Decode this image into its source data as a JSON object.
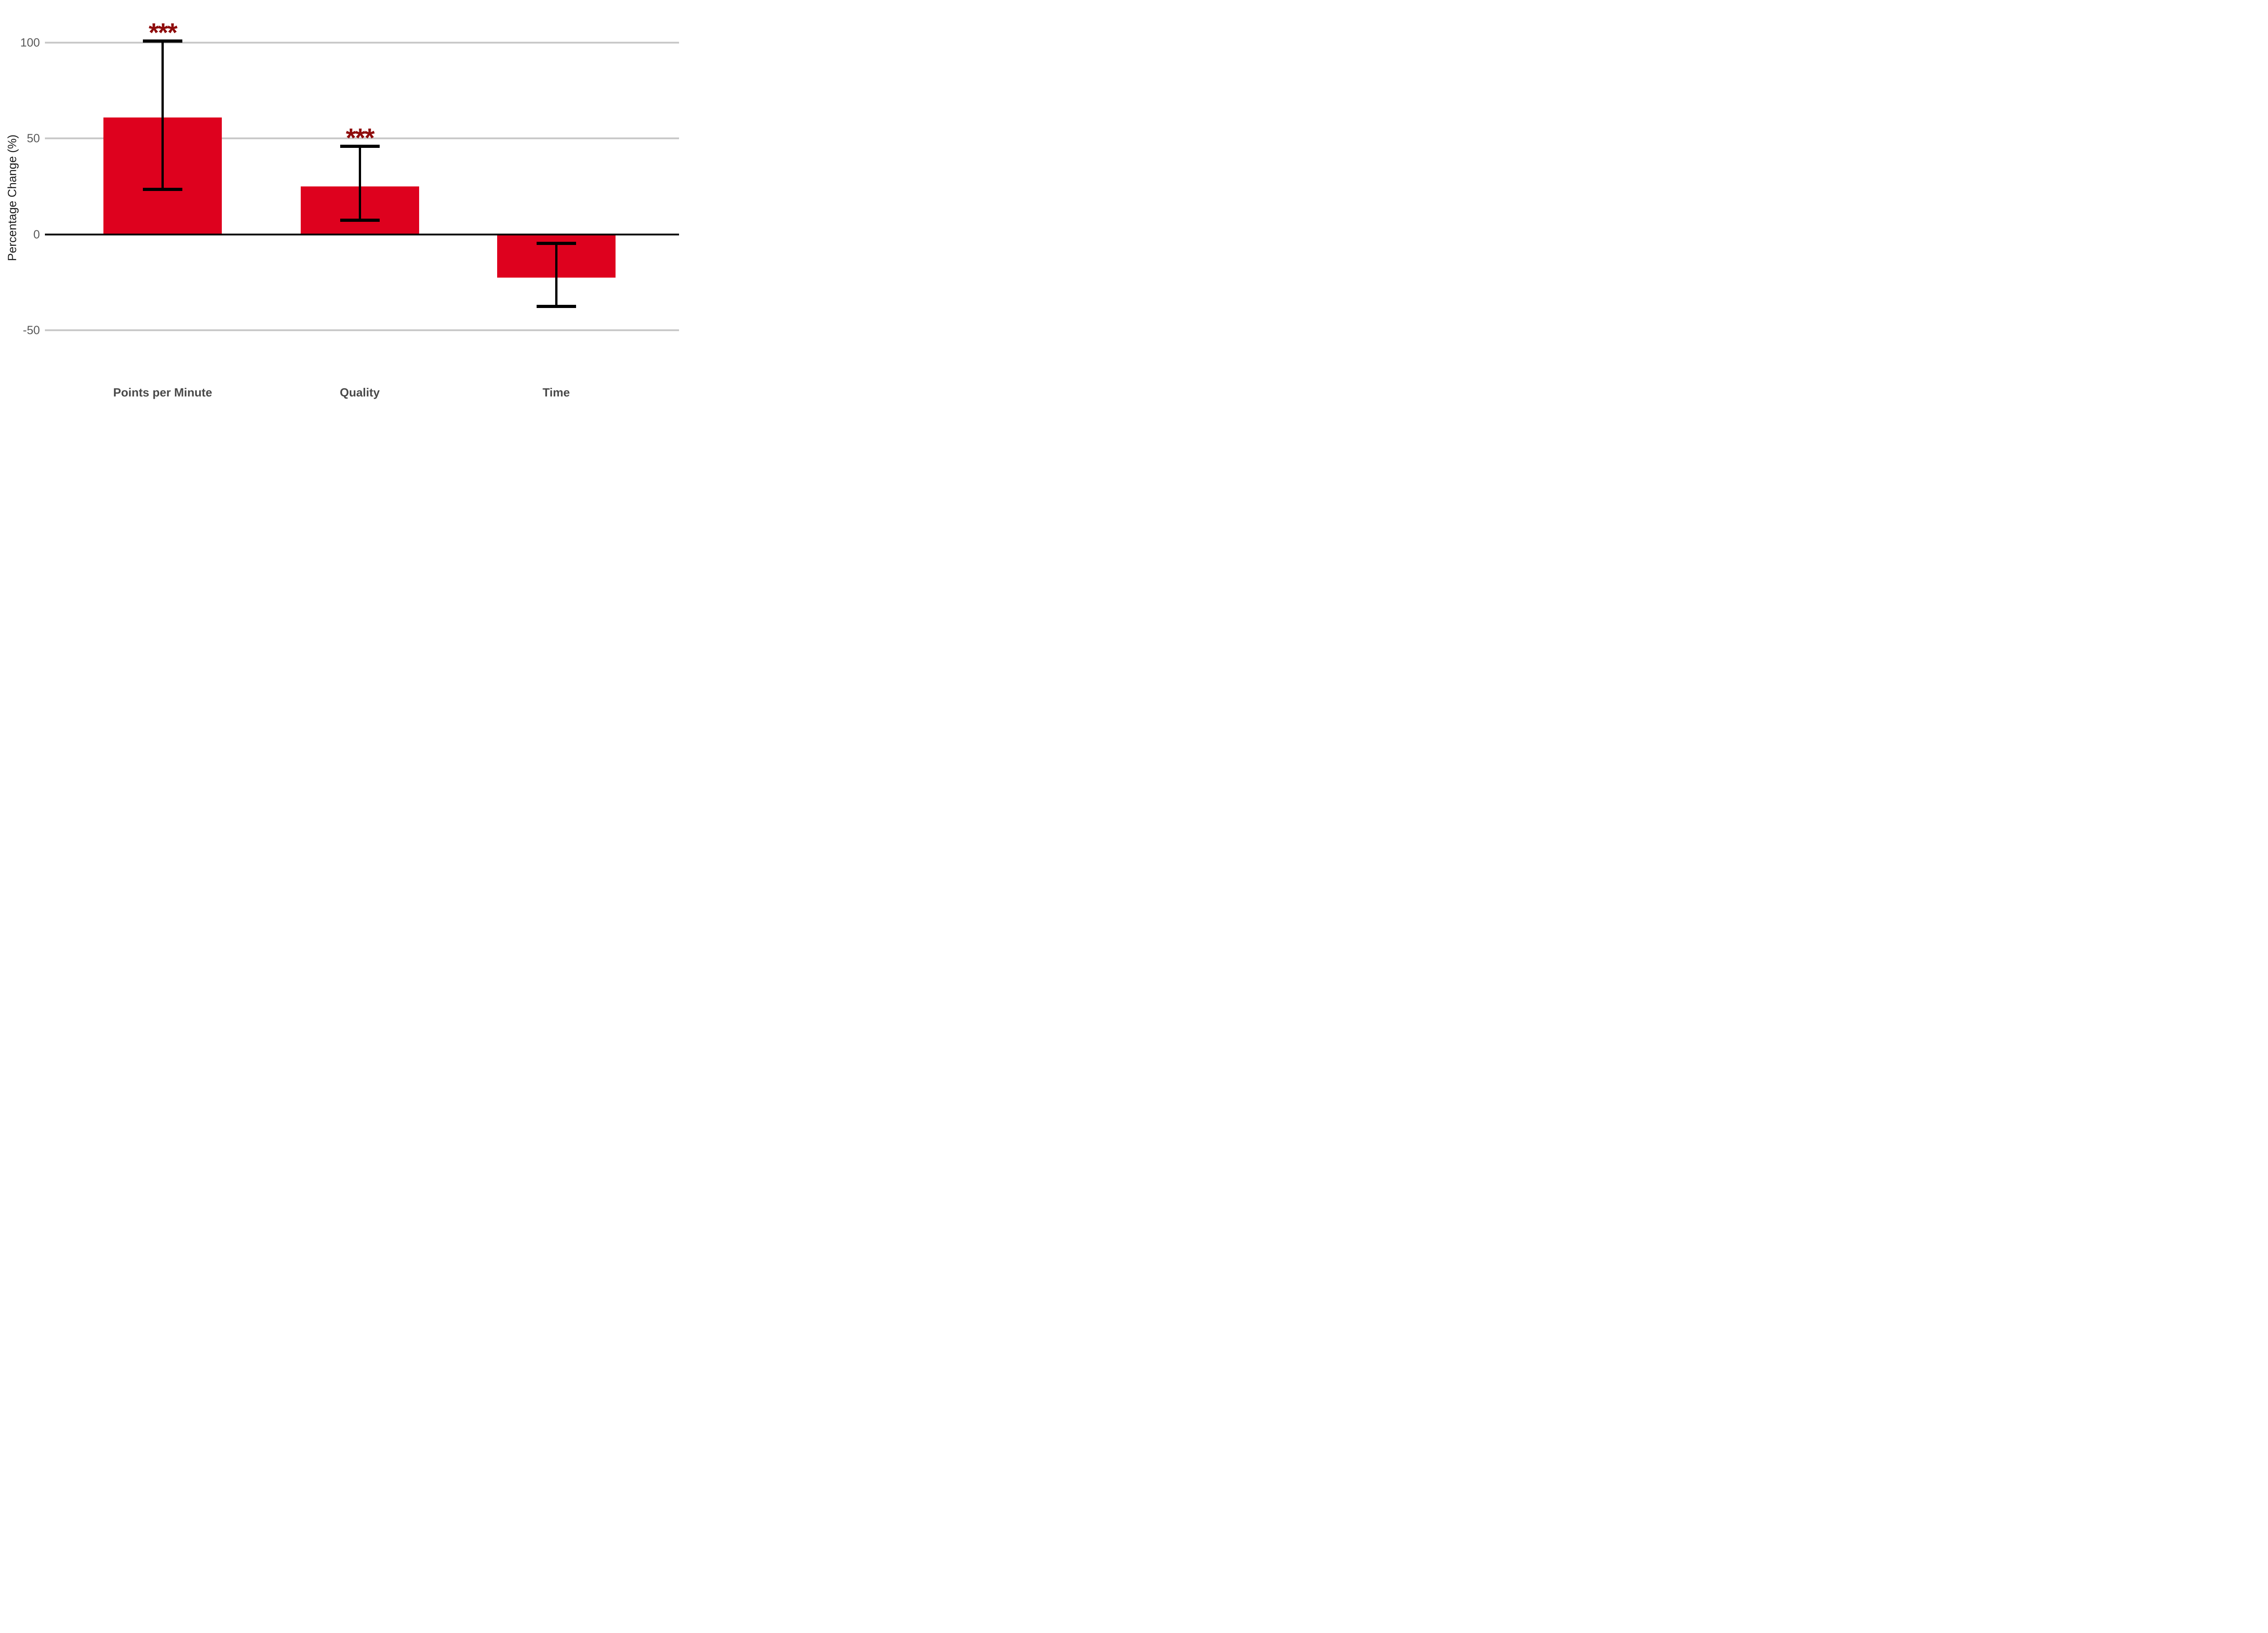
{
  "chart_data": {
    "type": "bar",
    "categories": [
      "Points per Minute",
      "Quality",
      "Time"
    ],
    "values": [
      61,
      25,
      -22.5
    ],
    "error_bars": {
      "low": [
        23.5,
        7.5,
        -37.5
      ],
      "high": [
        101,
        46,
        -4.5
      ]
    },
    "significance": [
      "***",
      "***",
      ""
    ],
    "title": "",
    "xlabel": "",
    "ylabel": "Percentage Change (%)",
    "yticks": [
      100,
      50,
      0,
      -50
    ],
    "ytick_labels": [
      "100",
      "50",
      "0",
      "-50"
    ],
    "ylim": [
      -90,
      122
    ],
    "grid": "horizontal-only",
    "legend": "none",
    "colors": {
      "bar_fill": "#de011e",
      "significance_marker": "#8e0c0c",
      "gridline": "#c9c9c9",
      "zero_axis": "#000000",
      "error_bar": "#000000",
      "tick_text": "#595959",
      "category_text": "#4a4a4a",
      "ylabel_text": "#1a1a1a"
    }
  }
}
